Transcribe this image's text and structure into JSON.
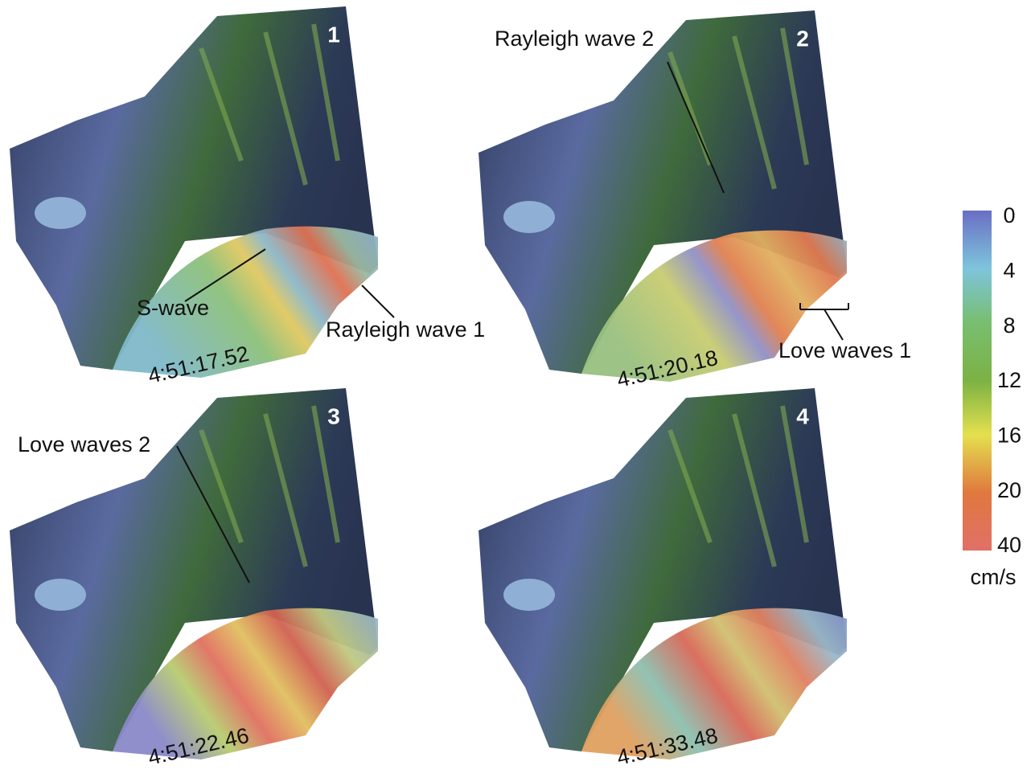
{
  "panels": [
    {
      "number": "1",
      "time": "4:51:17.52",
      "annotations": [
        "S-wave",
        "Rayleigh wave 1"
      ]
    },
    {
      "number": "2",
      "time": "4:51:20.18",
      "annotations": [
        "Rayleigh wave 2",
        "Love waves 1"
      ]
    },
    {
      "number": "3",
      "time": "4:51:22.46",
      "annotations": [
        "Love waves 2"
      ]
    },
    {
      "number": "4",
      "time": "4:51:33.48",
      "annotations": []
    }
  ],
  "colorbar": {
    "ticks": [
      0,
      4,
      8,
      12,
      16,
      20,
      40
    ],
    "unit": "cm/s"
  }
}
